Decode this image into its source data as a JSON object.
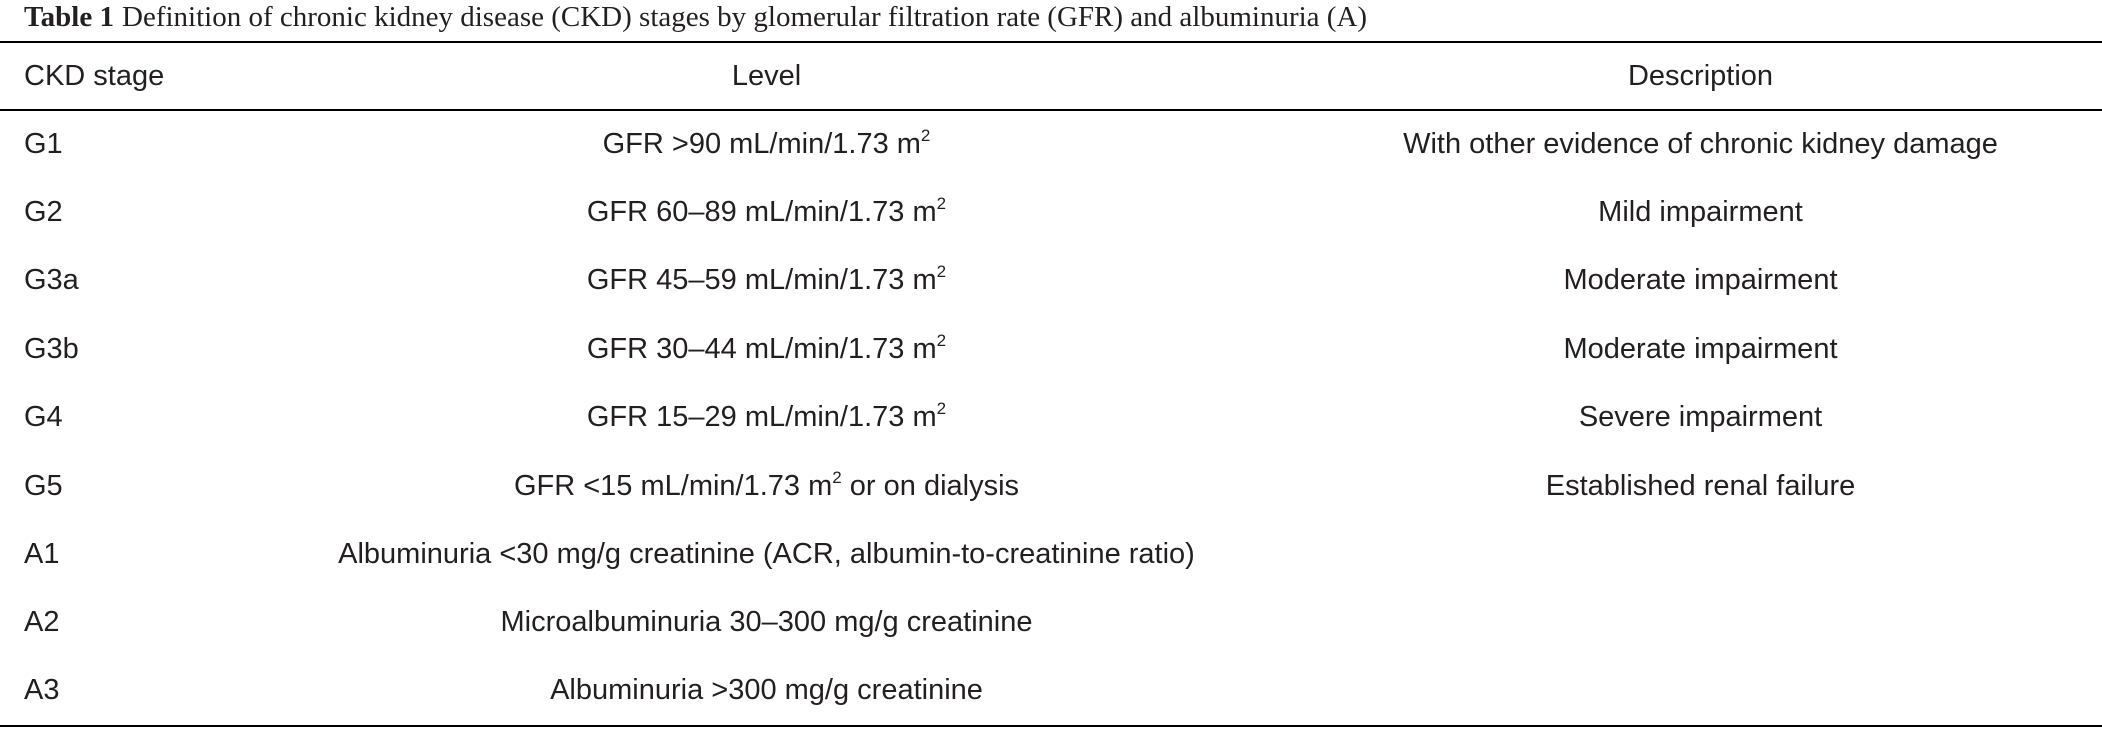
{
  "caption": {
    "label": "Table 1",
    "text": "Definition of chronic kidney disease (CKD) stages by glomerular filtration rate (GFR) and albuminuria (A)"
  },
  "table": {
    "headers": [
      "CKD stage",
      "Level",
      "Description"
    ],
    "rows": [
      {
        "stage": "G1",
        "level": {
          "main": "GFR >90 mL/min/1.73 m",
          "sup": "2"
        },
        "description": "With other evidence of chronic kidney damage"
      },
      {
        "stage": "G2",
        "level": {
          "main": "GFR 60–89 mL/min/1.73 m",
          "sup": "2"
        },
        "description": "Mild impairment"
      },
      {
        "stage": "G3a",
        "level": {
          "main": "GFR 45–59 mL/min/1.73 m",
          "sup": "2"
        },
        "description": "Moderate impairment"
      },
      {
        "stage": "G3b",
        "level": {
          "main": "GFR 30–44 mL/min/1.73 m",
          "sup": "2"
        },
        "description": "Moderate impairment"
      },
      {
        "stage": "G4",
        "level": {
          "main": "GFR 15–29 mL/min/1.73 m",
          "sup": "2"
        },
        "description": "Severe impairment"
      },
      {
        "stage": "G5",
        "level": {
          "main": "GFR <15 mL/min/1.73 m",
          "sup": "2",
          "tail": " or on dialysis"
        },
        "description": "Established renal failure"
      },
      {
        "stage": "A1",
        "level": {
          "main": "Albuminuria <30 mg/g creatinine (ACR, albumin-to-creatinine ratio)"
        }
      },
      {
        "stage": "A2",
        "level": {
          "main": "Microalbuminuria 30–300 mg/g creatinine"
        }
      },
      {
        "stage": "A3",
        "level": {
          "main": "Albuminuria >300 mg/g creatinine"
        }
      }
    ]
  }
}
